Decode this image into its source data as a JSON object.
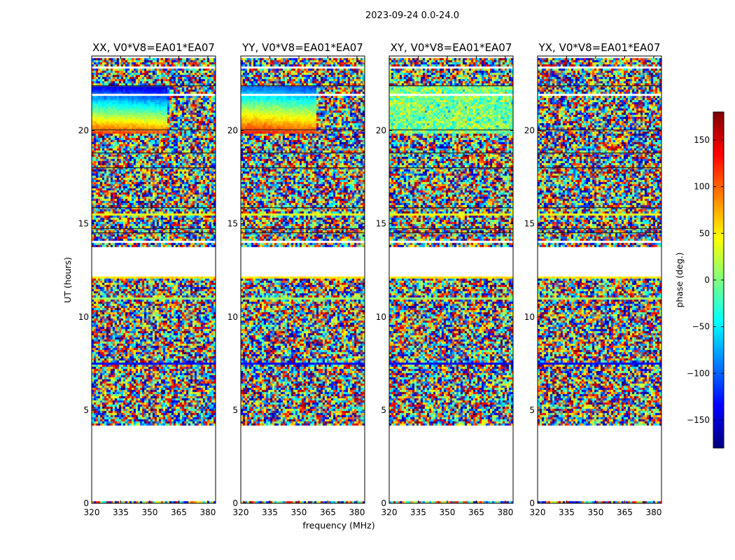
{
  "figure": {
    "suptitle": "2023-09-24 0.0-24.0",
    "xlabel": "frequency (MHz)",
    "ylabel": "UT (hours)",
    "colorbar_label": "phase (deg.)"
  },
  "chart_data": {
    "type": "heatmap",
    "panels": [
      {
        "title": "XX, V0*V8=EA01*EA07",
        "pol": "XX",
        "phase_center": "blue-to-red gradient",
        "eye": 0.95
      },
      {
        "title": "YY, V0*V8=EA01*EA07",
        "pol": "YY",
        "phase_center": "cyan-to-red gradient",
        "eye": 0.95
      },
      {
        "title": "XY, V0*V8=EA01*EA07",
        "pol": "XY",
        "phase_center": "noise near 0",
        "eye": 0.25
      },
      {
        "title": "YX, V0*V8=EA01*EA07",
        "pol": "YX",
        "phase_center": "noise",
        "eye": 0.1
      }
    ],
    "x": {
      "label": "frequency (MHz)",
      "ticks": [
        320,
        335,
        350,
        365,
        380
      ],
      "tick_labels": [
        "320",
        "335",
        "350",
        "365",
        "380"
      ],
      "range": [
        320,
        384
      ]
    },
    "y": {
      "label": "UT (hours)",
      "ticks": [
        0,
        5,
        10,
        15,
        20
      ],
      "tick_labels": [
        "0",
        "5",
        "10",
        "15",
        "20"
      ],
      "range": [
        0,
        24
      ]
    },
    "colorbar": {
      "label": "phase (deg.)",
      "range": [
        -180,
        180
      ],
      "ticks": [
        150,
        100,
        50,
        0,
        -50,
        -100,
        -150
      ],
      "tick_labels": [
        "150",
        "100",
        "50",
        "0",
        "−50",
        "−100",
        "−150"
      ],
      "colormap": "jet"
    },
    "gaps_ut_hours": [
      [
        0.08,
        4.2
      ],
      [
        12.2,
        13.7
      ]
    ],
    "coherent_interval_ut_hours": [
      19.8,
      22.4
    ],
    "coherent_freq_limit_mhz": 360
  },
  "colormap_stops": [
    "#00007f",
    "#0000ff",
    "#007fff",
    "#00ffff",
    "#7fff7f",
    "#ffff00",
    "#ff7f00",
    "#ff0000",
    "#7f0000"
  ]
}
